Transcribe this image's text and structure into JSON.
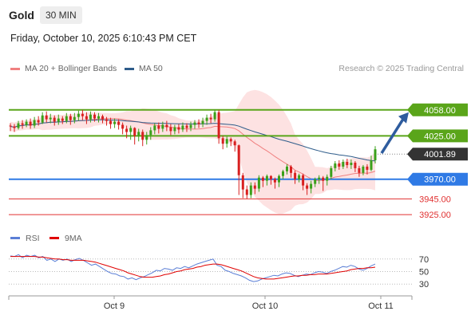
{
  "header": {
    "symbol": "Gold",
    "timeframe": "30 MIN",
    "datetime": "Friday, October 10, 2025 6:10:43 PM CET",
    "credit": "Research © 2025 Trading Central"
  },
  "legend": {
    "items": [
      {
        "label": "MA 20 + Bollinger Bands",
        "color": "#f08080"
      },
      {
        "label": "MA 50",
        "color": "#2e5c8a"
      }
    ]
  },
  "rsi_legend": {
    "items": [
      {
        "label": "RSI",
        "color": "#5b7fd6"
      },
      {
        "label": "9MA",
        "color": "#e00000"
      }
    ]
  },
  "chart_data": [
    {
      "type": "candlestick",
      "price_range": [
        3912,
        4078
      ],
      "current_price": {
        "label": "4001.89",
        "value": 4001.89
      },
      "levels": [
        {
          "label": "4058.00",
          "value": 4058,
          "kind": "resistance",
          "color": "#5aa51a"
        },
        {
          "label": "4025.00",
          "value": 4025,
          "kind": "resistance",
          "color": "#5aa51a"
        },
        {
          "label": "3970.00",
          "value": 3970,
          "kind": "pivot",
          "color": "#2f7ae5"
        },
        {
          "label": "3945.00",
          "value": 3945,
          "kind": "support",
          "color": "#e03030"
        },
        {
          "label": "3925.00",
          "value": 3925,
          "kind": "support",
          "color": "#e03030"
        }
      ],
      "x_ticks": [
        "Oct 9",
        "Oct 10",
        "Oct 11"
      ],
      "forecast": {
        "from": 4003,
        "to": 4055,
        "color": "#2e5c9e"
      },
      "candles": [
        [
          4038,
          4037,
          4031,
          4041
        ],
        [
          4037,
          4035,
          4030,
          4040
        ],
        [
          4035,
          4041,
          4033,
          4044
        ],
        [
          4041,
          4039,
          4034,
          4045
        ],
        [
          4039,
          4043,
          4036,
          4046
        ],
        [
          4043,
          4038,
          4034,
          4047
        ],
        [
          4038,
          4045,
          4035,
          4049
        ],
        [
          4045,
          4042,
          4038,
          4050
        ],
        [
          4042,
          4051,
          4040,
          4055
        ],
        [
          4051,
          4046,
          4042,
          4056
        ],
        [
          4046,
          4048,
          4041,
          4053
        ],
        [
          4048,
          4043,
          4038,
          4051
        ],
        [
          4043,
          4047,
          4039,
          4052
        ],
        [
          4047,
          4044,
          4040,
          4050
        ],
        [
          4044,
          4050,
          4041,
          4054
        ],
        [
          4050,
          4045,
          4039,
          4053
        ],
        [
          4045,
          4049,
          4041,
          4054
        ],
        [
          4049,
          4053,
          4044,
          4057
        ],
        [
          4053,
          4050,
          4045,
          4058
        ],
        [
          4050,
          4046,
          4040,
          4055
        ],
        [
          4046,
          4052,
          4042,
          4056
        ],
        [
          4052,
          4047,
          4043,
          4055
        ],
        [
          4047,
          4050,
          4042,
          4054
        ],
        [
          4050,
          4046,
          4041,
          4052
        ],
        [
          4046,
          4044,
          4038,
          4049
        ],
        [
          4044,
          4040,
          4034,
          4048
        ],
        [
          4040,
          4043,
          4035,
          4047
        ],
        [
          4043,
          4039,
          4033,
          4046
        ],
        [
          4039,
          4034,
          4027,
          4042
        ],
        [
          4034,
          4030,
          4022,
          4038
        ],
        [
          4030,
          4035,
          4020,
          4038
        ],
        [
          4035,
          4025,
          4014,
          4036
        ],
        [
          4025,
          4030,
          4018,
          4034
        ],
        [
          4030,
          4020,
          4012,
          4033
        ],
        [
          4020,
          4026,
          4014,
          4030
        ],
        [
          4026,
          4032,
          4020,
          4036
        ],
        [
          4032,
          4038,
          4027,
          4041
        ],
        [
          4038,
          4034,
          4028,
          4042
        ],
        [
          4034,
          4039,
          4030,
          4043
        ],
        [
          4039,
          4036,
          4031,
          4044
        ],
        [
          4036,
          4031,
          4026,
          4040
        ],
        [
          4031,
          4036,
          4027,
          4039
        ],
        [
          4036,
          4033,
          4028,
          4040
        ],
        [
          4033,
          4038,
          4030,
          4042
        ],
        [
          4038,
          4035,
          4030,
          4041
        ],
        [
          4035,
          4039,
          4031,
          4043
        ],
        [
          4039,
          4042,
          4034,
          4045
        ],
        [
          4042,
          4040,
          4035,
          4046
        ],
        [
          4040,
          4044,
          4036,
          4048
        ],
        [
          4044,
          4048,
          4039,
          4052
        ],
        [
          4048,
          4046,
          4041,
          4053
        ],
        [
          4046,
          4055,
          4043,
          4058
        ],
        [
          4055,
          4022,
          4015,
          4058
        ],
        [
          4022,
          4015,
          4008,
          4025
        ],
        [
          4015,
          4021,
          4010,
          4024
        ],
        [
          4021,
          4018,
          4012,
          4023
        ],
        [
          4018,
          4013,
          4005,
          4020
        ],
        [
          4013,
          3975,
          3950,
          4014
        ],
        [
          3975,
          3957,
          3946,
          3978
        ],
        [
          3957,
          3950,
          3945,
          3962
        ],
        [
          3950,
          3962,
          3946,
          3966
        ],
        [
          3962,
          3958,
          3951,
          3966
        ],
        [
          3958,
          3972,
          3954,
          3975
        ],
        [
          3972,
          3968,
          3960,
          3974
        ],
        [
          3968,
          3974,
          3962,
          3976
        ],
        [
          3974,
          3970,
          3963,
          3975
        ],
        [
          3970,
          3966,
          3958,
          3972
        ],
        [
          3966,
          3974,
          3960,
          3976
        ],
        [
          3974,
          3980,
          3970,
          3982
        ],
        [
          3980,
          3986,
          3976,
          3989
        ],
        [
          3986,
          3978,
          3972,
          3988
        ],
        [
          3978,
          3970,
          3964,
          3981
        ],
        [
          3970,
          3975,
          3966,
          3977
        ],
        [
          3975,
          3962,
          3956,
          3977
        ],
        [
          3962,
          3958,
          3950,
          3965
        ],
        [
          3958,
          3964,
          3952,
          3968
        ],
        [
          3964,
          3970,
          3960,
          3972
        ],
        [
          3970,
          3972,
          3964,
          3975
        ],
        [
          3972,
          3968,
          3955,
          3974
        ],
        [
          3968,
          3973,
          3962,
          3976
        ],
        [
          3973,
          3984,
          3970,
          3987
        ],
        [
          3984,
          3990,
          3980,
          3993
        ],
        [
          3990,
          3986,
          3982,
          3994
        ],
        [
          3986,
          3992,
          3983,
          3995
        ],
        [
          3992,
          3988,
          3984,
          3996
        ],
        [
          3988,
          3991,
          3983,
          3995
        ],
        [
          3991,
          3984,
          3979,
          3993
        ],
        [
          3984,
          3978,
          3973,
          3987
        ],
        [
          3978,
          3986,
          3975,
          3988
        ],
        [
          3986,
          3982,
          3976,
          3989
        ],
        [
          3982,
          3994,
          3980,
          4000
        ],
        [
          3994,
          4008,
          3990,
          4012
        ]
      ]
    },
    {
      "type": "line",
      "ylim": [
        15,
        85
      ],
      "y_ticks": [
        70,
        50,
        30
      ],
      "series": [
        {
          "name": "RSI",
          "values": [
            75,
            74,
            77,
            72,
            76,
            74,
            76,
            72,
            74,
            68,
            70,
            66,
            70,
            68,
            70,
            66,
            69,
            71,
            68,
            64,
            60,
            62,
            58,
            54,
            50,
            47,
            46,
            43,
            42,
            38,
            40,
            37,
            40,
            42,
            45,
            48,
            52,
            51,
            55,
            54,
            52,
            56,
            55,
            58,
            56,
            59,
            62,
            64,
            66,
            68,
            70,
            60,
            58,
            52,
            50,
            47,
            45,
            43,
            40,
            36,
            34,
            35,
            38,
            40,
            42,
            44,
            43,
            46,
            48,
            47,
            44,
            42,
            44,
            46,
            45,
            48,
            50,
            49,
            47,
            50,
            52,
            55,
            58,
            57,
            60,
            58,
            54,
            52,
            55,
            59,
            62
          ]
        },
        {
          "name": "9MA",
          "values": [
            74,
            74,
            74,
            74,
            74,
            74,
            74,
            73,
            73,
            72,
            71,
            70,
            70,
            69,
            69,
            68,
            68,
            68,
            68,
            67,
            66,
            65,
            63,
            61,
            59,
            57,
            55,
            53,
            51,
            48,
            46,
            44,
            42,
            41,
            41,
            41,
            42,
            43,
            45,
            46,
            48,
            50,
            51,
            53,
            54,
            55,
            57,
            58,
            60,
            61,
            62,
            62,
            61,
            59,
            57,
            55,
            53,
            51,
            48,
            45,
            42,
            40,
            39,
            38,
            38,
            38,
            39,
            40,
            41,
            42,
            43,
            43,
            44,
            44,
            45,
            45,
            46,
            46,
            46,
            47,
            48,
            49,
            50,
            51,
            53,
            54,
            55,
            55,
            56,
            56,
            57
          ]
        }
      ]
    }
  ]
}
